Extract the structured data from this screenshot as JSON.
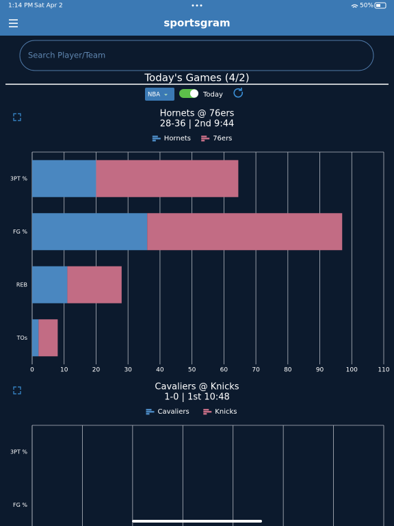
{
  "status_bar": {
    "time": "1:14 PM",
    "date": "Sat Apr 2",
    "battery": "50%"
  },
  "header": {
    "title": "sportsgram"
  },
  "search": {
    "placeholder": "Search Player/Team"
  },
  "games_heading": "Today's Games (4/2)",
  "filters": {
    "league": "NBA",
    "toggle_label": "Today"
  },
  "chart_data": [
    {
      "type": "bar",
      "orientation": "horizontal",
      "stacked": true,
      "title": "Hornets @ 76ers",
      "subtitle": "28-36 | 2nd 9:44",
      "categories": [
        "3PT %",
        "FG %",
        "REB",
        "TOs"
      ],
      "series": [
        {
          "name": "Hornets",
          "color": "#4a87c0",
          "values": [
            20,
            36,
            11,
            2
          ]
        },
        {
          "name": "76ers",
          "color": "#c26c84",
          "values": [
            44.5,
            61,
            17,
            6
          ]
        }
      ],
      "xlim": [
        0,
        110
      ],
      "xticks": [
        0,
        10,
        20,
        30,
        40,
        50,
        60,
        70,
        80,
        90,
        100,
        110
      ],
      "grid": true
    },
    {
      "type": "bar",
      "orientation": "horizontal",
      "stacked": true,
      "title": "Cavaliers @ Knicks",
      "subtitle": "1-0 | 1st 10:48",
      "categories": [
        "3PT %",
        "FG %"
      ],
      "series": [
        {
          "name": "Cavaliers",
          "color": "#4a87c0",
          "values": [
            0,
            0
          ]
        },
        {
          "name": "Knicks",
          "color": "#c26c84",
          "values": [
            0,
            0
          ]
        }
      ],
      "grid": true
    }
  ]
}
